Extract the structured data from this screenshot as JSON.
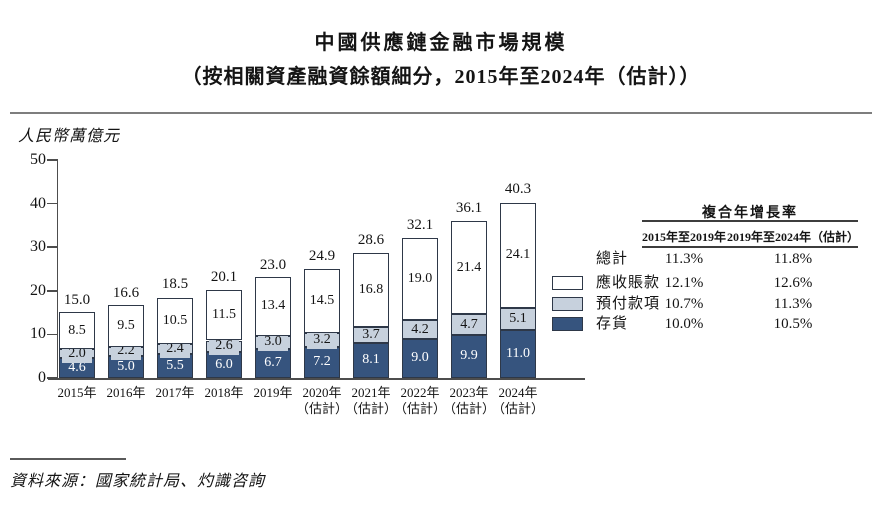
{
  "page": {
    "title": "中國供應鏈金融市場規模",
    "subtitle": "（按相關資產融資餘額細分，2015年至2024年（估計））",
    "source": "資料來源：國家統計局、灼識咨詢"
  },
  "chart_data": {
    "type": "bar",
    "stacked": true,
    "title": "中國供應鏈金融市場規模",
    "subtitle": "（按相關資產融資餘額細分，2015年至2024年（估計））",
    "ylabel": "人民幣萬億元",
    "ylim": [
      0,
      50
    ],
    "yticks": [
      0,
      10,
      20,
      30,
      40,
      50
    ],
    "grid": false,
    "legend_position": "right",
    "categories": [
      "2015年",
      "2016年",
      "2017年",
      "2018年",
      "2019年",
      "2020年",
      "2021年",
      "2022年",
      "2023年",
      "2024年"
    ],
    "estimate_label": "（估計）",
    "estimate_start_index": 5,
    "series": [
      {
        "name": "存貨",
        "color": "#36547e",
        "text_color": "#ffffff",
        "values": [
          4.6,
          5.0,
          5.5,
          6.0,
          6.7,
          7.2,
          8.1,
          9.0,
          9.9,
          11.0
        ]
      },
      {
        "name": "預付款項",
        "color": "#c7d1dd",
        "text_color": "#141414",
        "values": [
          2.0,
          2.2,
          2.4,
          2.6,
          3.0,
          3.2,
          3.7,
          4.2,
          4.7,
          5.1
        ]
      },
      {
        "name": "應收賬款",
        "color": "#ffffff",
        "text_color": "#141414",
        "values": [
          8.5,
          9.5,
          10.5,
          11.5,
          13.4,
          14.5,
          16.8,
          19.0,
          21.4,
          24.1
        ]
      }
    ],
    "totals": [
      15.0,
      16.6,
      18.5,
      20.1,
      23.0,
      24.9,
      28.6,
      32.1,
      36.1,
      40.3
    ],
    "legend": [
      {
        "label": "總計",
        "swatch": null
      },
      {
        "label": "應收賬款",
        "swatch": "#ffffff"
      },
      {
        "label": "預付款項",
        "swatch": "#c7d1dd"
      },
      {
        "label": "存貨",
        "swatch": "#36547e"
      }
    ],
    "cagr_table": {
      "header": "複合年增長率",
      "columns": [
        "2015年至2019年",
        "2019年至2024年（估計）"
      ],
      "rows": [
        {
          "label": "總計",
          "values": [
            "11.3%",
            "11.8%"
          ]
        },
        {
          "label": "應收賬款",
          "values": [
            "12.1%",
            "12.6%"
          ]
        },
        {
          "label": "預付款項",
          "values": [
            "10.7%",
            "11.3%"
          ]
        },
        {
          "label": "存貨",
          "values": [
            "10.0%",
            "10.5%"
          ]
        }
      ]
    }
  },
  "colors": {
    "inventory": "#36547e",
    "prepayments": "#c7d1dd",
    "receivables": "#ffffff",
    "bar_border": "#2e3848",
    "axis": "#4d4d4d",
    "text": "#141414",
    "top_rule": "#7e7e7e"
  }
}
